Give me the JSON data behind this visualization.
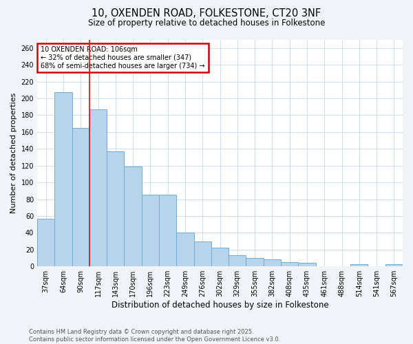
{
  "title_line1": "10, OXENDEN ROAD, FOLKESTONE, CT20 3NF",
  "title_line2": "Size of property relative to detached houses in Folkestone",
  "xlabel": "Distribution of detached houses by size in Folkestone",
  "ylabel": "Number of detached properties",
  "categories": [
    "37sqm",
    "64sqm",
    "90sqm",
    "117sqm",
    "143sqm",
    "170sqm",
    "196sqm",
    "223sqm",
    "249sqm",
    "276sqm",
    "302sqm",
    "329sqm",
    "355sqm",
    "382sqm",
    "408sqm",
    "435sqm",
    "461sqm",
    "488sqm",
    "514sqm",
    "541sqm",
    "567sqm"
  ],
  "values": [
    57,
    207,
    165,
    187,
    137,
    119,
    85,
    85,
    40,
    30,
    22,
    13,
    10,
    8,
    5,
    4,
    0,
    0,
    3,
    0,
    3
  ],
  "bar_color": "#b8d4ea",
  "bar_edge_color": "#6aaed6",
  "red_line_x": 2.5,
  "annotation_title": "10 OXENDEN ROAD: 106sqm",
  "annotation_line1": "← 32% of detached houses are smaller (347)",
  "annotation_line2": "68% of semi-detached houses are larger (734) →",
  "annotation_box_edgecolor": "#cc0000",
  "ylim": [
    0,
    270
  ],
  "yticks": [
    0,
    20,
    40,
    60,
    80,
    100,
    120,
    140,
    160,
    180,
    200,
    220,
    240,
    260
  ],
  "footer_line1": "Contains HM Land Registry data © Crown copyright and database right 2025.",
  "footer_line2": "Contains public sector information licensed under the Open Government Licence v3.0.",
  "bg_color": "#f0f4f8",
  "plot_bg_color": "#ffffff",
  "grid_color": "#c8d8e8"
}
